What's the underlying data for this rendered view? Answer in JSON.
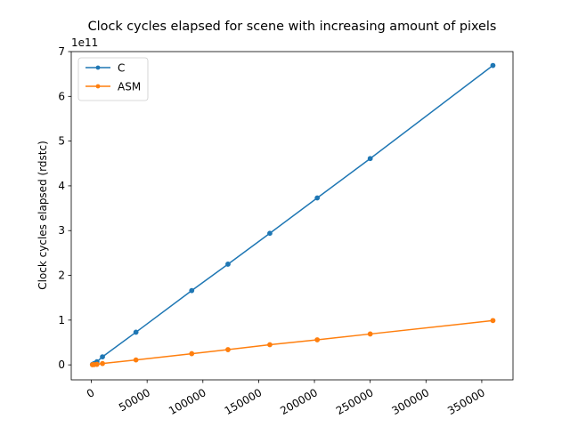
{
  "chart_data": {
    "type": "line",
    "title": "Clock cycles elapsed for scene with increasing amount of pixels",
    "xlabel": "",
    "ylabel": "Clock cycles elapsed (rdstc)",
    "y_offset_label": "1e11",
    "xlim": [
      -18000,
      378000
    ],
    "ylim": [
      -0.335,
      7.0
    ],
    "y_scale_factor": 100000000000.0,
    "x_ticks": [
      0,
      50000,
      100000,
      150000,
      200000,
      250000,
      300000,
      350000
    ],
    "x_tick_labels": [
      "0",
      "50000",
      "100000",
      "150000",
      "200000",
      "250000",
      "300000",
      "350000"
    ],
    "x_tick_rotation": 30,
    "y_ticks": [
      0,
      1,
      2,
      3,
      4,
      5,
      6,
      7
    ],
    "y_tick_labels": [
      "0",
      "1",
      "2",
      "3",
      "4",
      "5",
      "6",
      "7"
    ],
    "legend_position": "upper-left",
    "grid": false,
    "series": [
      {
        "name": "C",
        "color": "#1f77b4",
        "marker": "dot",
        "points": [
          {
            "x": 1000,
            "y": 0.01
          },
          {
            "x": 2500,
            "y": 0.03
          },
          {
            "x": 5000,
            "y": 0.07
          },
          {
            "x": 10000,
            "y": 0.18
          },
          {
            "x": 40000,
            "y": 0.73
          },
          {
            "x": 90000,
            "y": 1.66
          },
          {
            "x": 122500,
            "y": 2.25
          },
          {
            "x": 160000,
            "y": 2.94
          },
          {
            "x": 202500,
            "y": 3.73
          },
          {
            "x": 250000,
            "y": 4.61
          },
          {
            "x": 360000,
            "y": 6.69
          }
        ]
      },
      {
        "name": "ASM",
        "color": "#ff7f0e",
        "marker": "dot",
        "points": [
          {
            "x": 1000,
            "y": 0.003
          },
          {
            "x": 2500,
            "y": 0.006
          },
          {
            "x": 5000,
            "y": 0.012
          },
          {
            "x": 10000,
            "y": 0.03
          },
          {
            "x": 40000,
            "y": 0.11
          },
          {
            "x": 90000,
            "y": 0.25
          },
          {
            "x": 122500,
            "y": 0.34
          },
          {
            "x": 160000,
            "y": 0.45
          },
          {
            "x": 202500,
            "y": 0.56
          },
          {
            "x": 250000,
            "y": 0.69
          },
          {
            "x": 360000,
            "y": 0.99
          }
        ]
      }
    ]
  }
}
